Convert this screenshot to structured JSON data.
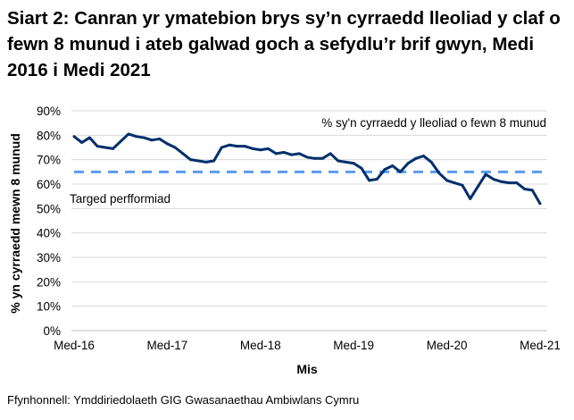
{
  "chart_data": {
    "type": "line",
    "title": "Siart 2: Canran yr ymatebion brys sy’n cyrraedd lleoliad y claf o fewn 8 munud i ateb galwad goch a sefydlu’r brif gwyn, Medi 2016 i Medi 2021",
    "xlabel": "Mis",
    "ylabel": "% yn cyrraedd mewn 8 munud",
    "ylim": [
      0,
      90
    ],
    "yticks": [
      "0%",
      "10%",
      "20%",
      "30%",
      "40%",
      "50%",
      "60%",
      "70%",
      "80%",
      "90%"
    ],
    "xticks": [
      "Med-16",
      "Med-17",
      "Med-18",
      "Med-19",
      "Med-20",
      "Med-21"
    ],
    "grid": true,
    "series": [
      {
        "name": "% sy'n cyrraedd y lleoliad o fewn 8 munud",
        "color": "#002f6c",
        "values": [
          79.5,
          77,
          79,
          75.5,
          75,
          74.5,
          77.5,
          80.5,
          79.5,
          79,
          78,
          78.5,
          76.5,
          75,
          72.5,
          70,
          69.5,
          69,
          69.5,
          75,
          76,
          75.5,
          75.5,
          74.5,
          74,
          74.5,
          72.5,
          73,
          72,
          72.5,
          71,
          70.5,
          70.5,
          72.5,
          69.5,
          69,
          68.5,
          66.5,
          61.5,
          62,
          66,
          67.5,
          65,
          68.5,
          70.5,
          71.5,
          69,
          64.5,
          61.5,
          60.5,
          59.5,
          54,
          59,
          64,
          62,
          61,
          60.5,
          60.5,
          58,
          57.5,
          52
        ]
      },
      {
        "name": "Targed perfformiad",
        "color": "#5b9bef",
        "values": [
          65
        ]
      }
    ]
  },
  "source": "Ffynhonnell: Ymddiriedolaeth GIG Gwasanaethau Ambiwlans Cymru"
}
